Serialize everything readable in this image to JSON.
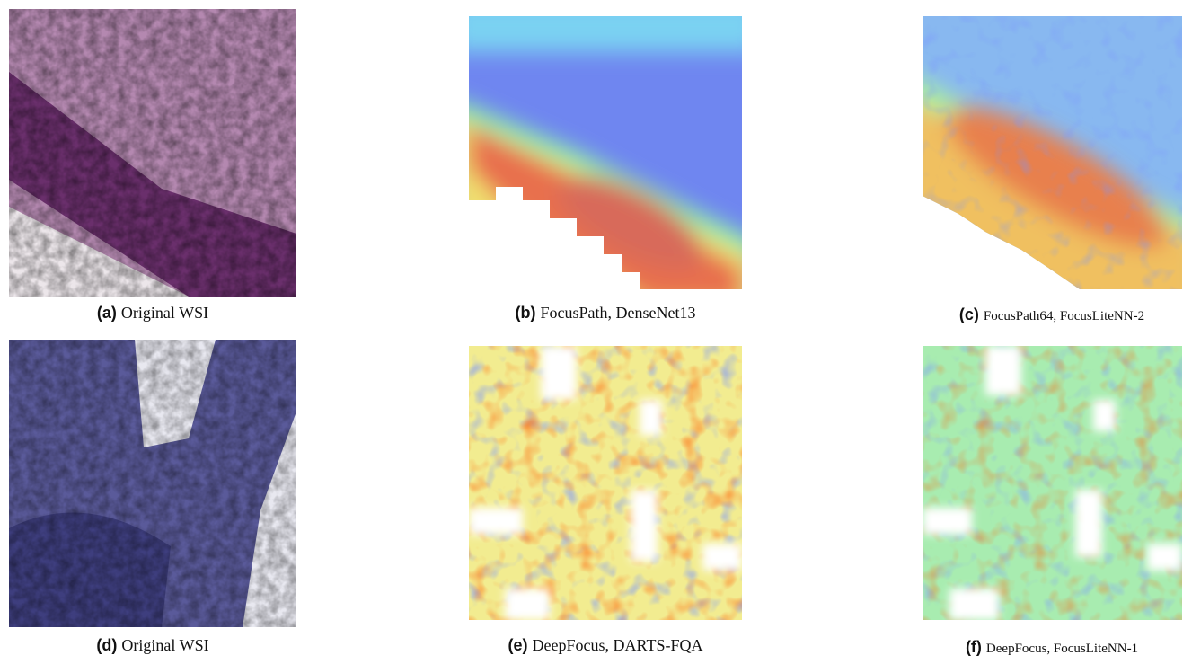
{
  "panels": [
    {
      "label": "(a)",
      "text": "Original WSI"
    },
    {
      "label": "(b)",
      "text": "FocusPath, DenseNet13"
    },
    {
      "label": "(c)",
      "text": "FocusPath64, FocusLiteNN-2"
    },
    {
      "label": "(d)",
      "text": "Original WSI"
    },
    {
      "label": "(e)",
      "text": "DeepFocus, DARTS-FQA"
    },
    {
      "label": "(f)",
      "text": "DeepFocus, FocusLiteNN-1"
    }
  ]
}
